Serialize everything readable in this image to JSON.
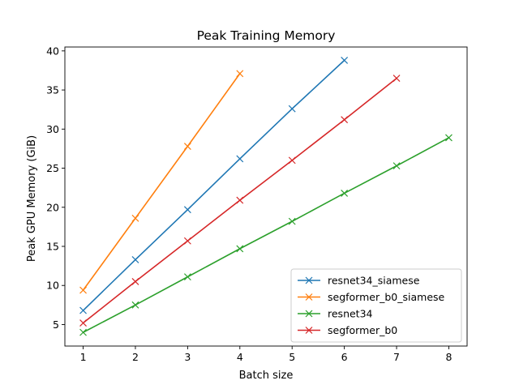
{
  "chart_data": {
    "type": "line",
    "title": "Peak Training Memory",
    "xlabel": "Batch size",
    "ylabel": "Peak GPU Memory (GiB)",
    "xlim": [
      0.65,
      8.35
    ],
    "ylim": [
      2.25,
      40.5
    ],
    "xticks": [
      1,
      2,
      3,
      4,
      5,
      6,
      7,
      8
    ],
    "yticks": [
      5,
      10,
      15,
      20,
      25,
      30,
      35,
      40
    ],
    "grid": false,
    "legend_position": "lower-right",
    "marker": "x",
    "series": [
      {
        "name": "resnet34_siamese",
        "color": "#1f77b4",
        "x": [
          1,
          2,
          3,
          4,
          5,
          6
        ],
        "y": [
          6.8,
          13.3,
          19.7,
          26.2,
          32.6,
          38.8
        ]
      },
      {
        "name": "segformer_b0_siamese",
        "color": "#ff7f0e",
        "x": [
          1,
          2,
          3,
          4
        ],
        "y": [
          9.4,
          18.6,
          27.8,
          37.1
        ]
      },
      {
        "name": "resnet34",
        "color": "#2ca02c",
        "x": [
          1,
          2,
          3,
          4,
          5,
          6,
          7,
          8
        ],
        "y": [
          4.0,
          7.5,
          11.1,
          14.7,
          18.2,
          21.8,
          25.3,
          28.9
        ]
      },
      {
        "name": "segformer_b0",
        "color": "#d62728",
        "x": [
          1,
          2,
          3,
          4,
          5,
          6,
          7
        ],
        "y": [
          5.2,
          10.5,
          15.7,
          20.9,
          26.0,
          31.2,
          36.5
        ]
      }
    ]
  }
}
